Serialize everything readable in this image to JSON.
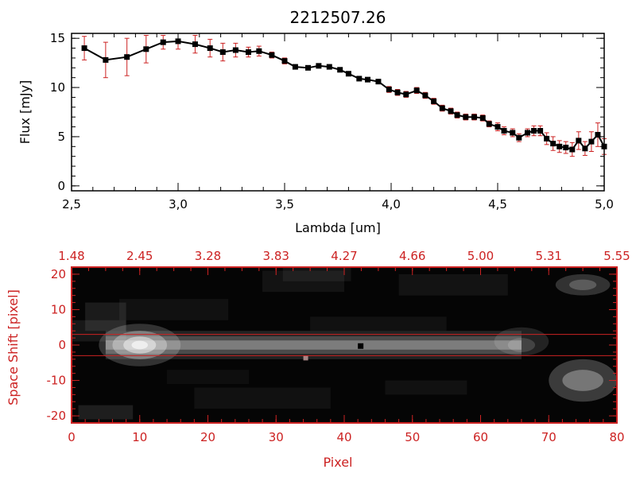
{
  "colors": {
    "data": "#000000",
    "errorbar": "#cc2222",
    "accent": "#cc2222",
    "axis_top": "#000000"
  },
  "chart_data": [
    {
      "type": "line",
      "title": "2212507.26",
      "xlabel": "Lambda [um]",
      "ylabel": "Flux [mJy]",
      "xlim": [
        2.5,
        5.0
      ],
      "ylim": [
        -0.5,
        15.5
      ],
      "xticks": [
        "2.5",
        "3.0",
        "3.5",
        "4.0",
        "4.5",
        "5.0"
      ],
      "yticks": [
        "0",
        "5",
        "10",
        "15"
      ],
      "grid": false,
      "series": [
        {
          "x": [
            2.56,
            2.66,
            2.76,
            2.85,
            2.93,
            3.0,
            3.08,
            3.15,
            3.21,
            3.27,
            3.33,
            3.38,
            3.44,
            3.5,
            3.55,
            3.61,
            3.66,
            3.71,
            3.76,
            3.8,
            3.85,
            3.89,
            3.94,
            3.99,
            4.03,
            4.07,
            4.12,
            4.16,
            4.2,
            4.24,
            4.28,
            4.31,
            4.35,
            4.39,
            4.43,
            4.46,
            4.5,
            4.53,
            4.57,
            4.6,
            4.64,
            4.67,
            4.7,
            4.73,
            4.76,
            4.79,
            4.82,
            4.85,
            4.88,
            4.91,
            4.94,
            4.97,
            5.0
          ],
          "y": [
            14.0,
            12.8,
            13.1,
            13.9,
            14.6,
            14.7,
            14.4,
            14.0,
            13.6,
            13.8,
            13.6,
            13.7,
            13.3,
            12.7,
            12.1,
            12.0,
            12.2,
            12.1,
            11.8,
            11.4,
            10.9,
            10.8,
            10.6,
            9.8,
            9.5,
            9.3,
            9.7,
            9.2,
            8.6,
            7.9,
            7.6,
            7.2,
            7.0,
            7.0,
            6.9,
            6.3,
            6.0,
            5.6,
            5.4,
            4.9,
            5.4,
            5.6,
            5.6,
            4.8,
            4.3,
            4.0,
            3.9,
            3.7,
            4.6,
            3.8,
            4.5,
            5.2,
            4.0
          ],
          "err": [
            1.2,
            1.8,
            1.9,
            1.4,
            0.7,
            0.8,
            0.9,
            0.9,
            0.9,
            0.7,
            0.5,
            0.5,
            0.3,
            0.3,
            0.2,
            0.2,
            0.2,
            0.2,
            0.2,
            0.2,
            0.2,
            0.2,
            0.2,
            0.3,
            0.3,
            0.3,
            0.3,
            0.3,
            0.3,
            0.3,
            0.3,
            0.3,
            0.3,
            0.3,
            0.3,
            0.3,
            0.4,
            0.4,
            0.4,
            0.4,
            0.4,
            0.5,
            0.5,
            0.6,
            0.7,
            0.6,
            0.6,
            0.7,
            0.9,
            0.7,
            1.0,
            1.2,
            0.8
          ]
        }
      ]
    },
    {
      "type": "heatmap",
      "xlabel": "Pixel",
      "ylabel": "Space Shift [pixel]",
      "xlim": [
        0,
        80
      ],
      "ylim": [
        -22,
        22
      ],
      "xticks": [
        "0",
        "10",
        "20",
        "30",
        "40",
        "50",
        "60",
        "70",
        "80"
      ],
      "yticks": [
        "-20",
        "-10",
        "0",
        "10",
        "20"
      ],
      "top_axis_ticks": [
        "1.48",
        "2.45",
        "3.28",
        "3.83",
        "4.27",
        "4.66",
        "5.00",
        "5.31",
        "5.55"
      ],
      "extraction_window": [
        -3,
        3
      ],
      "grid": false
    }
  ]
}
